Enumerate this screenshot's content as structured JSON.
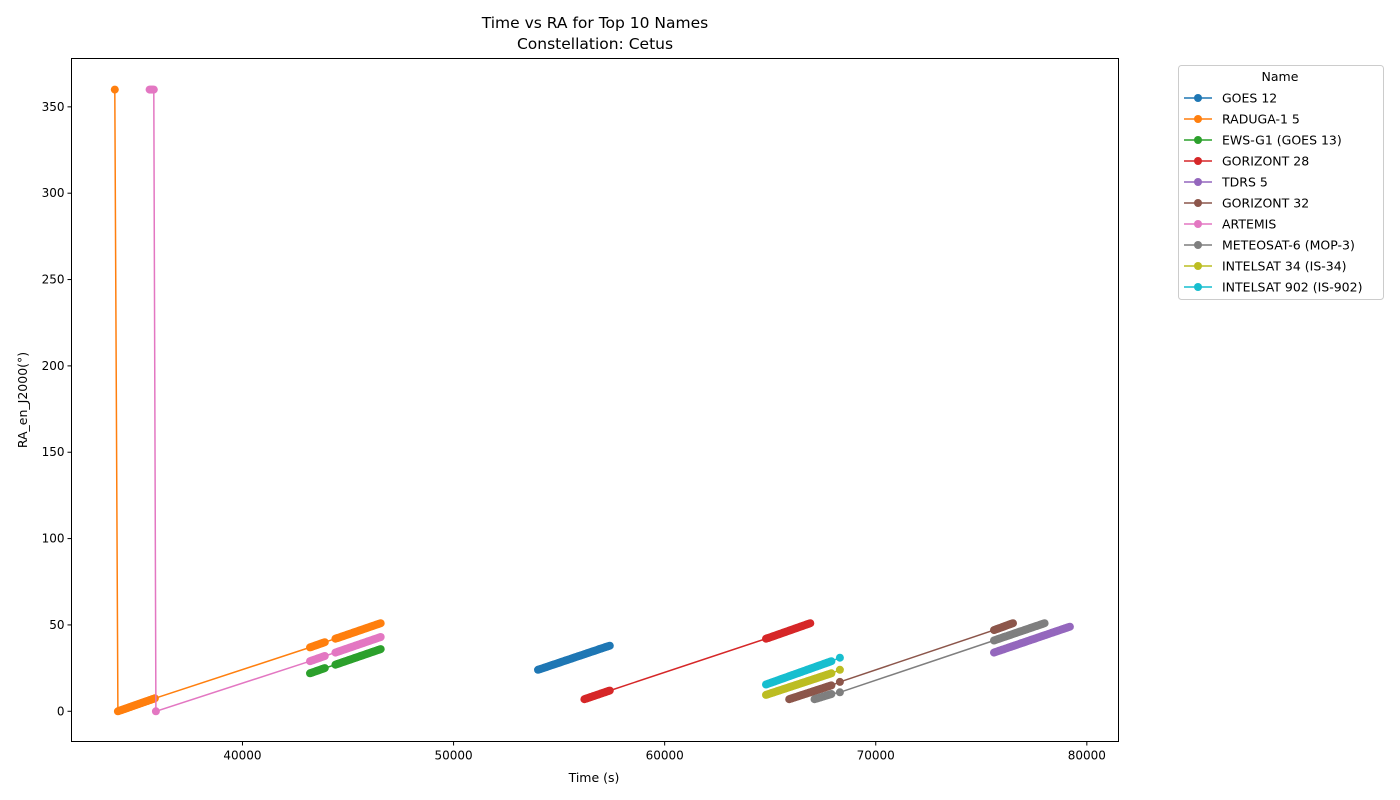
{
  "chart_data": {
    "type": "line",
    "title": "Time vs RA for Top 10 Names",
    "subtitle": "Constellation: Cetus",
    "xlabel": "Time (s)",
    "ylabel": "RA_en_J2000(°)",
    "xlim": [
      31900,
      81500
    ],
    "ylim": [
      -17.5,
      378
    ],
    "xticks": [
      40000,
      50000,
      60000,
      70000,
      80000
    ],
    "yticks": [
      0,
      50,
      100,
      150,
      200,
      250,
      300,
      350
    ],
    "grid": false,
    "legend": {
      "title": "Name",
      "placement": "outside-top-right"
    },
    "series": [
      {
        "name": "GOES 12",
        "color": "#1f77b4",
        "segments": [
          {
            "x0": 54000,
            "y0": 24,
            "x1": 57400,
            "y1": 38,
            "n": 60
          }
        ]
      },
      {
        "name": "RADUGA-1 5",
        "color": "#ff7f0e",
        "segments": [
          {
            "x0": 33950,
            "y0": 360,
            "x1": 33950,
            "y1": 360,
            "n": 1
          },
          {
            "x0": 34100,
            "y0": 0,
            "x1": 35850,
            "y1": 7.5,
            "n": 40
          },
          {
            "x0": 43200,
            "y0": 37,
            "x1": 43900,
            "y1": 40,
            "n": 14
          },
          {
            "x0": 44400,
            "y0": 42,
            "x1": 46550,
            "y1": 51,
            "n": 40
          }
        ]
      },
      {
        "name": "EWS-G1 (GOES 13)",
        "color": "#2ca02c",
        "segments": [
          {
            "x0": 43200,
            "y0": 22,
            "x1": 43900,
            "y1": 25,
            "n": 14
          },
          {
            "x0": 44400,
            "y0": 27,
            "x1": 46550,
            "y1": 36,
            "n": 40
          }
        ]
      },
      {
        "name": "GORIZONT 28",
        "color": "#d62728",
        "segments": [
          {
            "x0": 56200,
            "y0": 7,
            "x1": 57400,
            "y1": 12,
            "n": 25
          },
          {
            "x0": 64800,
            "y0": 42,
            "x1": 66900,
            "y1": 51,
            "n": 40
          }
        ]
      },
      {
        "name": "TDRS 5",
        "color": "#9467bd",
        "segments": [
          {
            "x0": 75600,
            "y0": 34,
            "x1": 79200,
            "y1": 49,
            "n": 60
          }
        ]
      },
      {
        "name": "GORIZONT 32",
        "color": "#8c564b",
        "segments": [
          {
            "x0": 65900,
            "y0": 7,
            "x1": 67900,
            "y1": 15,
            "n": 40
          },
          {
            "x0": 68300,
            "y0": 17,
            "x1": 68300,
            "y1": 17,
            "n": 1
          },
          {
            "x0": 75600,
            "y0": 47,
            "x1": 76500,
            "y1": 51,
            "n": 18
          }
        ]
      },
      {
        "name": "ARTEMIS",
        "color": "#e377c2",
        "segments": [
          {
            "x0": 35600,
            "y0": 360,
            "x1": 35800,
            "y1": 360,
            "n": 5
          },
          {
            "x0": 35900,
            "y0": 0,
            "x1": 35900,
            "y1": 0,
            "n": 1
          },
          {
            "x0": 43200,
            "y0": 29,
            "x1": 43900,
            "y1": 32,
            "n": 14
          },
          {
            "x0": 44400,
            "y0": 34,
            "x1": 46550,
            "y1": 43,
            "n": 40
          }
        ]
      },
      {
        "name": "METEOSAT-6 (MOP-3)",
        "color": "#7f7f7f",
        "segments": [
          {
            "x0": 67100,
            "y0": 7,
            "x1": 67900,
            "y1": 10,
            "n": 16
          },
          {
            "x0": 68300,
            "y0": 11,
            "x1": 68300,
            "y1": 11,
            "n": 1
          },
          {
            "x0": 75600,
            "y0": 41,
            "x1": 78000,
            "y1": 51,
            "n": 45
          }
        ]
      },
      {
        "name": "INTELSAT 34 (IS-34)",
        "color": "#bcbd22",
        "segments": [
          {
            "x0": 64800,
            "y0": 9.5,
            "x1": 67900,
            "y1": 22,
            "n": 55
          },
          {
            "x0": 68300,
            "y0": 24,
            "x1": 68300,
            "y1": 24,
            "n": 1
          }
        ]
      },
      {
        "name": "INTELSAT 902 (IS-902)",
        "color": "#17becf",
        "segments": [
          {
            "x0": 64800,
            "y0": 15.5,
            "x1": 67900,
            "y1": 29,
            "n": 55
          },
          {
            "x0": 68300,
            "y0": 31,
            "x1": 68300,
            "y1": 31,
            "n": 1
          }
        ]
      }
    ]
  }
}
